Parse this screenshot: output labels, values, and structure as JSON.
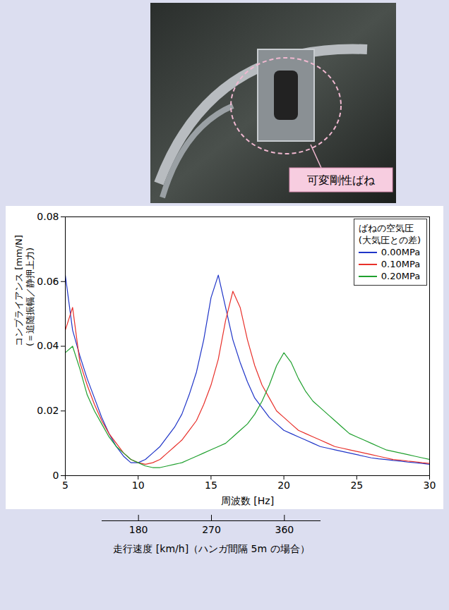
{
  "chart_data": {
    "type": "line",
    "annotation": "可変剛性ばね",
    "xlabel": "周波数 [Hz]",
    "ylabel": [
      "コンプライアンス [mm/N]",
      "(＝追随振幅／静押上力)"
    ],
    "legend_title": [
      "ばねの空気圧",
      "(大気圧との差)"
    ],
    "legend": "top-right",
    "xlim": [
      5,
      30
    ],
    "xticks": [
      5,
      10,
      15,
      20,
      25,
      30
    ],
    "ylim": [
      0,
      0.08
    ],
    "yticks": [
      0,
      0.02,
      0.04,
      0.06,
      0.08
    ],
    "grid": false,
    "x2label": "走行速度 [km/h]（ハンガ間隔 5m の場合）",
    "x2lim": [
      135,
      405
    ],
    "x2ticks": [
      180,
      270,
      360
    ],
    "x": [
      5,
      5.5,
      6,
      6.5,
      7,
      7.5,
      8,
      8.5,
      9,
      9.5,
      10,
      10.5,
      11,
      11.5,
      12,
      12.5,
      13,
      13.5,
      14,
      14.5,
      15,
      15.5,
      16,
      16.5,
      17,
      17.5,
      18,
      18.5,
      19,
      19.5,
      20,
      20.5,
      21,
      21.5,
      22,
      22.5,
      23,
      23.5,
      24,
      24.5,
      25,
      25.5,
      26,
      26.5,
      27,
      27.5,
      28,
      28.5,
      29,
      29.5,
      30
    ],
    "series": [
      {
        "name": "0.00MPa",
        "color": "#1f35c8",
        "values": [
          0.062,
          0.045,
          0.037,
          0.03,
          0.024,
          0.018,
          0.013,
          0.009,
          0.006,
          0.004,
          0.004,
          0.005,
          0.007,
          0.009,
          0.012,
          0.015,
          0.019,
          0.025,
          0.032,
          0.042,
          0.055,
          0.062,
          0.052,
          0.042,
          0.035,
          0.029,
          0.024,
          0.021,
          0.018,
          0.016,
          0.014,
          0.013,
          0.012,
          0.011,
          0.01,
          0.009,
          0.0085,
          0.008,
          0.0075,
          0.007,
          0.0065,
          0.006,
          0.0055,
          0.0052,
          0.005,
          0.0047,
          0.0045,
          0.0042,
          0.004,
          0.0038,
          0.0035
        ]
      },
      {
        "name": "0.10MPa",
        "color": "#e8302a",
        "values": [
          0.045,
          0.052,
          0.035,
          0.028,
          0.022,
          0.017,
          0.013,
          0.01,
          0.007,
          0.005,
          0.004,
          0.0035,
          0.004,
          0.005,
          0.007,
          0.009,
          0.011,
          0.014,
          0.017,
          0.022,
          0.028,
          0.036,
          0.048,
          0.057,
          0.052,
          0.042,
          0.034,
          0.028,
          0.024,
          0.02,
          0.018,
          0.016,
          0.014,
          0.013,
          0.012,
          0.011,
          0.01,
          0.009,
          0.0085,
          0.008,
          0.0075,
          0.007,
          0.0065,
          0.006,
          0.0055,
          0.005,
          0.0048,
          0.0045,
          0.0043,
          0.004,
          0.0038
        ]
      },
      {
        "name": "0.20MPa",
        "color": "#1fa02e",
        "values": [
          0.038,
          0.04,
          0.033,
          0.025,
          0.02,
          0.016,
          0.012,
          0.009,
          0.007,
          0.005,
          0.004,
          0.003,
          0.0025,
          0.0025,
          0.003,
          0.0035,
          0.004,
          0.005,
          0.006,
          0.007,
          0.008,
          0.009,
          0.01,
          0.012,
          0.014,
          0.016,
          0.019,
          0.023,
          0.028,
          0.034,
          0.038,
          0.035,
          0.03,
          0.026,
          0.023,
          0.021,
          0.019,
          0.017,
          0.015,
          0.013,
          0.012,
          0.011,
          0.01,
          0.009,
          0.008,
          0.0075,
          0.007,
          0.0065,
          0.006,
          0.0055,
          0.005
        ]
      }
    ]
  }
}
